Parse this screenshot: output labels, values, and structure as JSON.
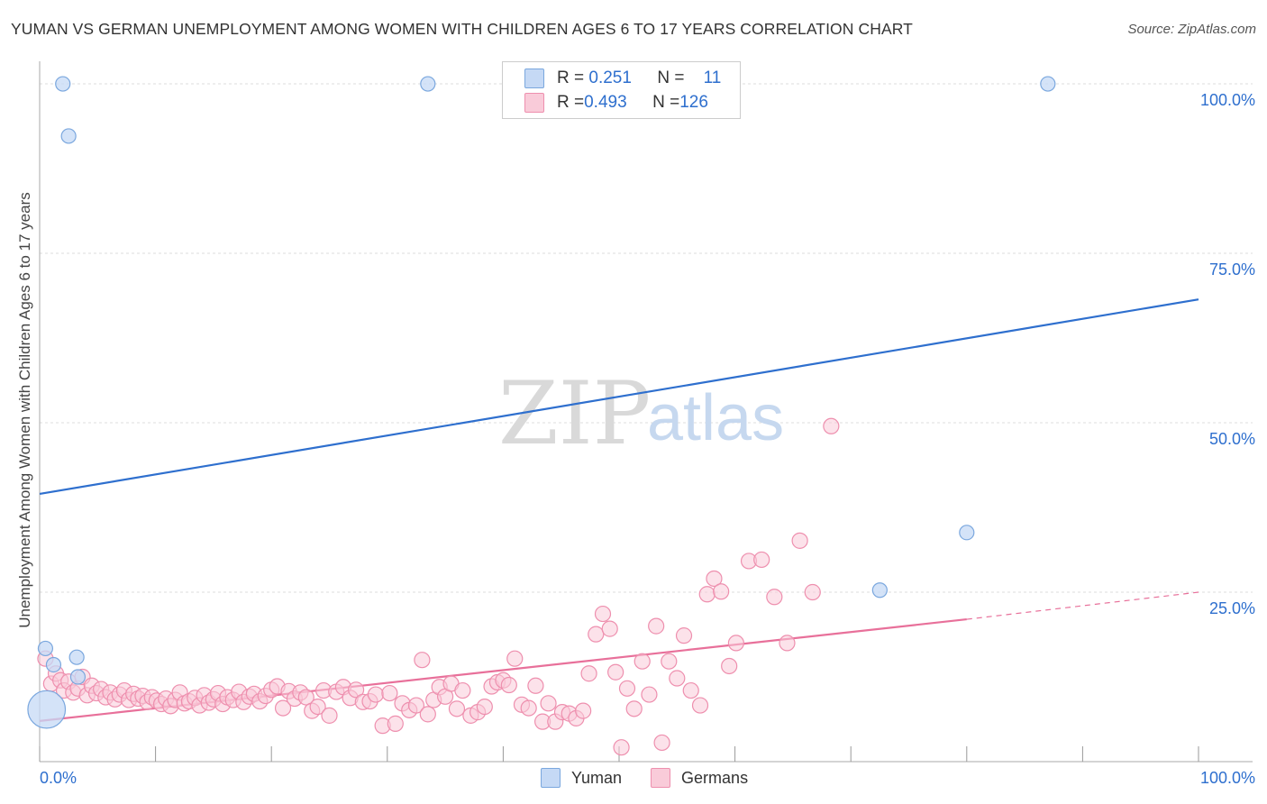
{
  "title": "YUMAN VS GERMAN UNEMPLOYMENT AMONG WOMEN WITH CHILDREN AGES 6 TO 17 YEARS CORRELATION CHART",
  "source": "Source: ZipAtlas.com",
  "watermark": {
    "zip": "ZIP",
    "atlas": "atlas"
  },
  "legend": {
    "rows": [
      {
        "r_label": "R = ",
        "r_value": "0.251",
        "n_label": "N = ",
        "n_value": "11"
      },
      {
        "r_label": "R = ",
        "r_value": "0.493",
        "n_label": "N = ",
        "n_value": "126"
      }
    ],
    "bottom": [
      "Yuman",
      "Germans"
    ]
  },
  "colors": {
    "yuman_fill": "#c5d9f5",
    "yuman_stroke": "#7aa7de",
    "yuman_line": "#2e6fce",
    "german_fill": "#f9cbd9",
    "german_stroke": "#ee8fae",
    "german_line": "#e8709a",
    "grid": "#dddddd",
    "axis_label": "#2e6fce"
  },
  "chart_data": {
    "type": "scatter",
    "title": "YUMAN VS GERMAN UNEMPLOYMENT AMONG WOMEN WITH CHILDREN AGES 6 TO 17 YEARS CORRELATION CHART",
    "xlabel": "",
    "ylabel": "Unemployment Among Women with Children Ages 6 to 17 years",
    "xlim": [
      0,
      100
    ],
    "ylim": [
      0,
      102
    ],
    "x_tick_labels": [
      "0.0%",
      "100.0%"
    ],
    "y_ticks": [
      25,
      50,
      75,
      100
    ],
    "y_tick_labels": [
      "25.0%",
      "50.0%",
      "75.0%",
      "100.0%"
    ],
    "grid": true,
    "series": [
      {
        "name": "Yuman",
        "points": [
          [
            2,
            100
          ],
          [
            33.5,
            100
          ],
          [
            87,
            100
          ],
          [
            2.5,
            92.3
          ],
          [
            0.6,
            7.7
          ],
          [
            0.5,
            16.7
          ],
          [
            1.2,
            14.3
          ],
          [
            3.2,
            15.4
          ],
          [
            3.3,
            12.5
          ],
          [
            72.5,
            25.3
          ],
          [
            80,
            33.8
          ]
        ],
        "sizes": [
          1,
          1,
          1,
          1,
          2.6,
          1,
          1,
          1,
          1,
          1,
          1
        ],
        "trend": {
          "x": [
            0,
            100
          ],
          "y": [
            39.5,
            68.2
          ]
        }
      },
      {
        "name": "Germans",
        "points": [
          [
            0.5,
            15.2
          ],
          [
            1,
            11.5
          ],
          [
            1.4,
            13
          ],
          [
            1.8,
            12
          ],
          [
            2.1,
            10.5
          ],
          [
            2.5,
            11.8
          ],
          [
            2.9,
            10.2
          ],
          [
            3.3,
            10.8
          ],
          [
            3.7,
            12.5
          ],
          [
            4.1,
            9.8
          ],
          [
            4.5,
            11.2
          ],
          [
            4.9,
            10.1
          ],
          [
            5.3,
            10.7
          ],
          [
            5.7,
            9.5
          ],
          [
            6.1,
            10.2
          ],
          [
            6.5,
            9.2
          ],
          [
            6.9,
            9.9
          ],
          [
            7.3,
            10.5
          ],
          [
            7.7,
            9.1
          ],
          [
            8.1,
            10
          ],
          [
            8.5,
            9.3
          ],
          [
            8.9,
            9.7
          ],
          [
            9.3,
            8.8
          ],
          [
            9.7,
            9.5
          ],
          [
            10.1,
            9
          ],
          [
            10.5,
            8.5
          ],
          [
            10.9,
            9.3
          ],
          [
            11.3,
            8.2
          ],
          [
            11.7,
            9.1
          ],
          [
            12.1,
            10.2
          ],
          [
            12.5,
            8.6
          ],
          [
            12.9,
            8.9
          ],
          [
            13.4,
            9.4
          ],
          [
            13.8,
            8.3
          ],
          [
            14.2,
            9.8
          ],
          [
            14.6,
            8.7
          ],
          [
            15,
            9.2
          ],
          [
            15.4,
            10.1
          ],
          [
            15.8,
            8.5
          ],
          [
            16.2,
            9.5
          ],
          [
            16.7,
            9.1
          ],
          [
            17.2,
            10.3
          ],
          [
            17.6,
            8.8
          ],
          [
            18.1,
            9.6
          ],
          [
            18.5,
            10
          ],
          [
            19,
            8.9
          ],
          [
            19.5,
            9.7
          ],
          [
            20,
            10.6
          ],
          [
            20.5,
            11.1
          ],
          [
            21,
            7.9
          ],
          [
            21.5,
            10.4
          ],
          [
            22,
            9.3
          ],
          [
            22.5,
            10.2
          ],
          [
            23,
            9.5
          ],
          [
            23.5,
            7.5
          ],
          [
            24,
            8.1
          ],
          [
            24.5,
            10.5
          ],
          [
            25,
            6.8
          ],
          [
            25.6,
            10.3
          ],
          [
            26.2,
            11
          ],
          [
            26.8,
            9.4
          ],
          [
            27.3,
            10.6
          ],
          [
            27.9,
            8.8
          ],
          [
            28.5,
            8.9
          ],
          [
            29,
            9.9
          ],
          [
            29.6,
            5.3
          ],
          [
            30.2,
            10.1
          ],
          [
            30.7,
            5.6
          ],
          [
            31.3,
            8.6
          ],
          [
            31.9,
            7.6
          ],
          [
            32.5,
            8.3
          ],
          [
            33,
            15
          ],
          [
            33.5,
            7
          ],
          [
            34,
            9.1
          ],
          [
            34.5,
            11
          ],
          [
            35,
            9.6
          ],
          [
            35.5,
            11.5
          ],
          [
            36,
            7.8
          ],
          [
            36.5,
            10.5
          ],
          [
            37.2,
            6.8
          ],
          [
            37.8,
            7.3
          ],
          [
            38.4,
            8.1
          ],
          [
            39,
            11.1
          ],
          [
            39.5,
            11.7
          ],
          [
            40,
            12
          ],
          [
            40.5,
            11.3
          ],
          [
            41,
            15.2
          ],
          [
            41.6,
            8.4
          ],
          [
            42.2,
            7.9
          ],
          [
            42.8,
            11.2
          ],
          [
            43.4,
            5.9
          ],
          [
            43.9,
            8.6
          ],
          [
            44.5,
            5.9
          ],
          [
            45.1,
            7.3
          ],
          [
            45.7,
            7.1
          ],
          [
            46.3,
            6.4
          ],
          [
            46.9,
            7.5
          ],
          [
            47.4,
            13
          ],
          [
            48,
            18.8
          ],
          [
            48.6,
            21.8
          ],
          [
            49.2,
            19.6
          ],
          [
            49.7,
            13.2
          ],
          [
            50.2,
            2.1
          ],
          [
            50.7,
            10.8
          ],
          [
            51.3,
            7.8
          ],
          [
            52,
            14.8
          ],
          [
            52.6,
            9.9
          ],
          [
            53.2,
            20
          ],
          [
            53.7,
            2.8
          ],
          [
            54.3,
            14.8
          ],
          [
            55,
            12.3
          ],
          [
            55.6,
            18.6
          ],
          [
            56.2,
            10.5
          ],
          [
            57,
            8.3
          ],
          [
            57.6,
            24.7
          ],
          [
            58.2,
            27
          ],
          [
            58.8,
            25.1
          ],
          [
            59.5,
            14.1
          ],
          [
            60.1,
            17.5
          ],
          [
            61.2,
            29.6
          ],
          [
            62.3,
            29.8
          ],
          [
            63.4,
            24.3
          ],
          [
            64.5,
            17.5
          ],
          [
            65.6,
            32.6
          ],
          [
            66.7,
            25
          ],
          [
            68.3,
            49.5
          ]
        ],
        "trend": {
          "x": [
            0,
            80
          ],
          "y": [
            6,
            21
          ]
        },
        "trend_dashed": {
          "x": [
            80,
            100
          ],
          "y": [
            21,
            25
          ]
        }
      }
    ]
  }
}
